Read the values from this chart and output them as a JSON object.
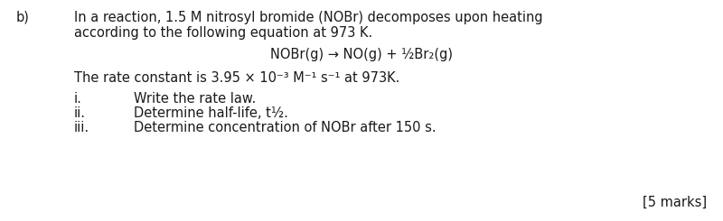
{
  "bg_color": "#ffffff",
  "text_color": "#1a1a1a",
  "label_b": "b)",
  "line1": "In a reaction, 1.5 M nitrosyl bromide (NOBr) decomposes upon heating",
  "line2": "according to the following equation at 973 K.",
  "equation": "NOBr(g) → NO(g) + ½Br₂(g)",
  "rate_constant_line": "The rate constant is 3.95 × 10⁻³ M⁻¹ s⁻¹ at 973K.",
  "item_i_num": "i.",
  "item_i_text": "Write the rate law.",
  "item_ii_num": "ii.",
  "item_ii_text": "Determine half-life, t½.",
  "item_iii_num": "iii.",
  "item_iii_text": "Determine concentration of NOBr after 150 s.",
  "marks": "[5 marks]",
  "font_size_main": 10.5
}
